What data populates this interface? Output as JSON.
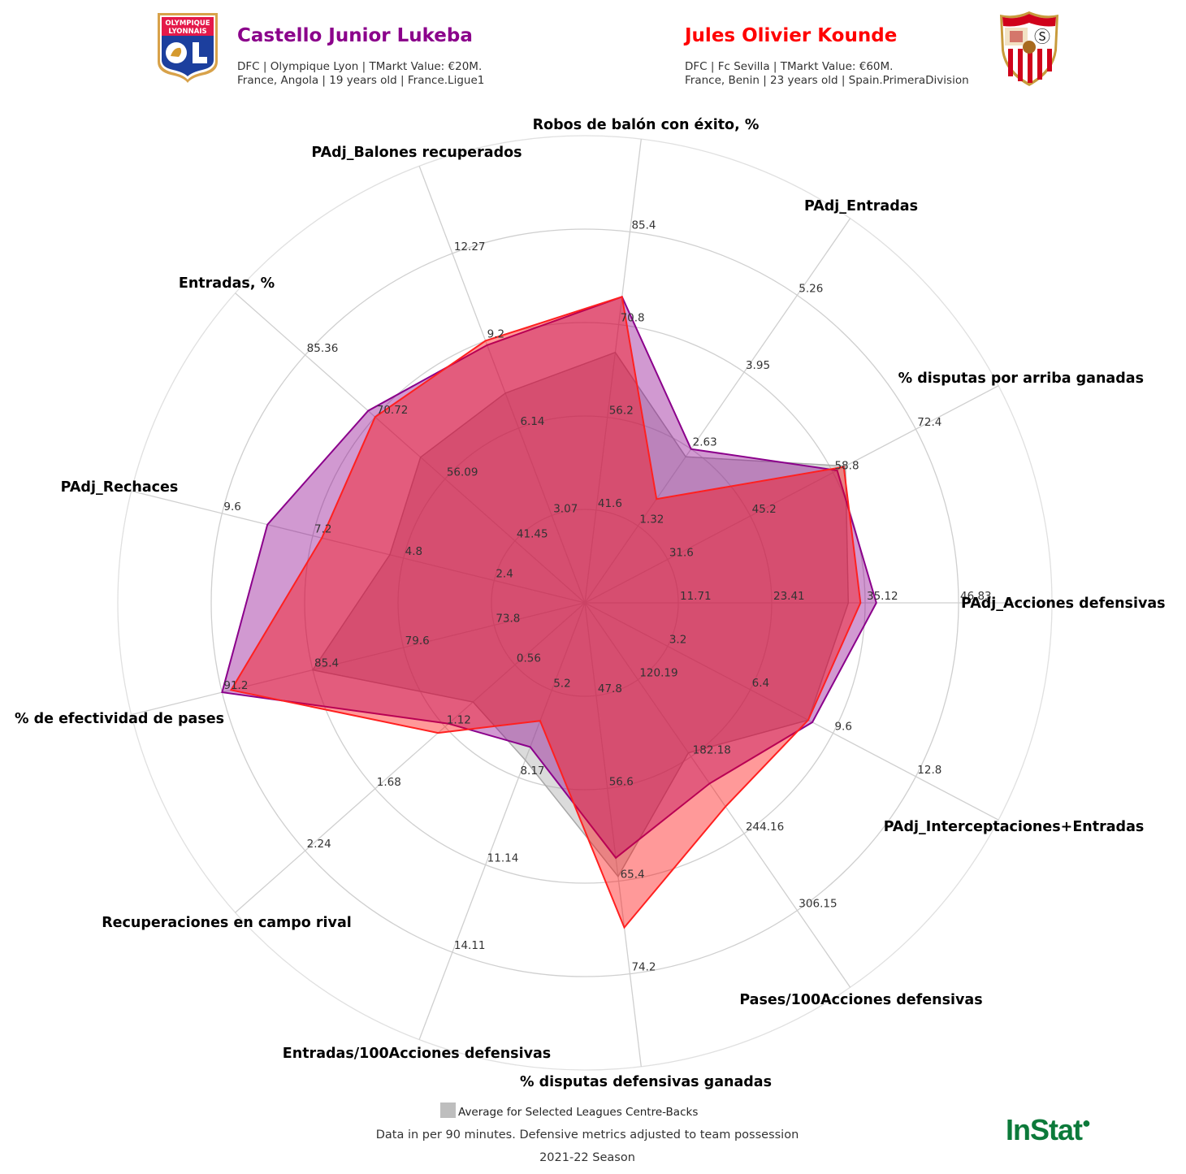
{
  "player_left": {
    "name": "Castello Junior Lukeba",
    "color": "#8B008B",
    "line1": "DFC | Olympique Lyon | TMarkt Value: €20M.",
    "line2": "France, Angola | 19 years old | France.Ligue1",
    "crest": {
      "top": "OLYMPIQUE",
      "bottom": "LYONNAIS",
      "letters": "OL"
    }
  },
  "player_right": {
    "name": "Jules Olivier Kounde",
    "color": "#FF0000",
    "line1": "DFC | Fc Sevilla | TMarkt Value: €60M.",
    "line2": "France, Benin | 23 years old | Spain.PrimeraDivision"
  },
  "legend": {
    "average_label": "Average for Selected Leagues Centre-Backs",
    "average_color": "#BEBEBE"
  },
  "footer": {
    "note": "Data in per 90 minutes. Defensive metrics adjusted to team possession",
    "season": "2021-22 Season",
    "brand": "InStat"
  },
  "chart_data": {
    "type": "radar",
    "title": "",
    "axes": [
      {
        "label": "PAdj_Acciones defensivas",
        "ticks": [
          "11.71",
          "23.41",
          "35.12",
          "46.83"
        ]
      },
      {
        "label": "% disputas por arriba ganadas",
        "ticks": [
          "31.6",
          "45.2",
          "58.8",
          "72.4"
        ]
      },
      {
        "label": "PAdj_Entradas",
        "ticks": [
          "1.32",
          "2.63",
          "3.95",
          "5.26"
        ]
      },
      {
        "label": "Robos de balón con éxito, %",
        "ticks": [
          "41.6",
          "56.2",
          "70.8",
          "85.4"
        ]
      },
      {
        "label": "PAdj_Balones recuperados",
        "ticks": [
          "3.07",
          "6.14",
          "9.2",
          "12.27"
        ]
      },
      {
        "label": "Entradas, %",
        "ticks": [
          "41.45",
          "56.09",
          "70.72",
          "85.36"
        ]
      },
      {
        "label": "PAdj_Rechaces",
        "ticks": [
          "2.4",
          "4.8",
          "7.2",
          "9.6"
        ]
      },
      {
        "label": "% de efectividad de pases",
        "ticks": [
          "73.8",
          "79.6",
          "85.4",
          "91.2"
        ]
      },
      {
        "label": "Recuperaciones en campo rival",
        "ticks": [
          "0.56",
          "1.12",
          "1.68",
          "2.24"
        ]
      },
      {
        "label": "Entradas/100Acciones defensivas",
        "ticks": [
          "5.2",
          "8.17",
          "11.14",
          "14.11"
        ]
      },
      {
        "label": "% disputas defensivas ganadas",
        "ticks": [
          "47.8",
          "56.6",
          "65.4",
          "74.2"
        ]
      },
      {
        "label": "Pases/100Acciones defensivas",
        "ticks": [
          "120.19",
          "182.18",
          "244.16",
          "306.15"
        ]
      },
      {
        "label": "PAdj_Interceptaciones+Entradas",
        "ticks": [
          "3.2",
          "6.4",
          "9.6",
          "12.8"
        ]
      }
    ],
    "radial_fraction_series_note": "values are ring-fractions (1 = first tick ring, 4 = fourth tick ring)",
    "series": [
      {
        "name": "Castello Junior Lukeba",
        "color": "#8B008B",
        "values": [
          33.5,
          58.0,
          2.6,
          74.0,
          9.1,
          73.0,
          8.4,
          93.0,
          1.09,
          7.4,
          64.0,
          203.0,
          9.4
        ],
        "radius_rings": [
          3.12,
          3.05,
          2.0,
          3.3,
          2.95,
          3.1,
          3.5,
          4.0,
          1.95,
          1.65,
          2.75,
          2.35,
          2.75
        ]
      },
      {
        "name": "Jules Olivier Kounde",
        "color": "#FF0000",
        "values": [
          30.5,
          59.5,
          1.75,
          73.5,
          9.3,
          70.5,
          6.9,
          91.0,
          1.17,
          4.8,
          71.0,
          225.0,
          9.2
        ],
        "radius_rings": [
          2.95,
          3.13,
          1.35,
          3.3,
          3.0,
          3.0,
          2.9,
          3.9,
          2.1,
          1.35,
          3.5,
          2.65,
          2.7
        ]
      },
      {
        "name": "Average for Selected Leagues Centre-Backs",
        "color": "#BEBEBE",
        "values": [
          29.0,
          60.0,
          2.5,
          66.0,
          7.3,
          60.0,
          4.6,
          85.5,
          0.8,
          8.4,
          64.5,
          150.0,
          9.5
        ],
        "radius_rings": [
          2.82,
          3.15,
          1.9,
          2.7,
          2.4,
          2.35,
          2.15,
          3.0,
          1.6,
          1.8,
          2.95,
          1.95,
          2.7
        ]
      }
    ],
    "grid": true,
    "legend_position": "bottom"
  }
}
